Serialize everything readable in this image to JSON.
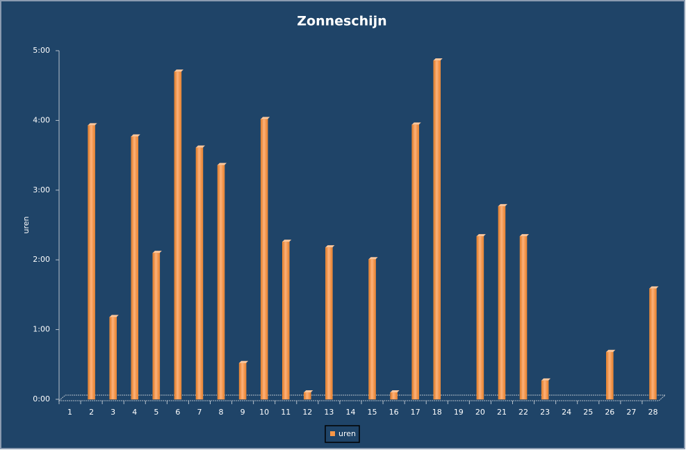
{
  "chart_data": {
    "type": "bar",
    "title": "Zonneschijn",
    "y_label": "uren",
    "categories": [
      "1",
      "2",
      "3",
      "4",
      "5",
      "6",
      "7",
      "8",
      "9",
      "10",
      "11",
      "12",
      "13",
      "14",
      "15",
      "16",
      "17",
      "18",
      "19",
      "20",
      "21",
      "22",
      "23",
      "24",
      "25",
      "26",
      "27",
      "28"
    ],
    "series": [
      {
        "name": "uren",
        "color": "#f79646",
        "values": [
          0,
          3.93,
          1.18,
          3.77,
          2.1,
          4.7,
          3.61,
          3.36,
          0.52,
          4.02,
          2.26,
          0.1,
          2.18,
          0,
          2.01,
          0.1,
          3.94,
          4.86,
          0,
          2.34,
          2.77,
          2.34,
          0.27,
          0,
          0,
          0.68,
          0,
          1.59
        ]
      }
    ],
    "ylim": [
      0,
      5
    ],
    "yticks": [
      {
        "value": 0,
        "label": "0:00"
      },
      {
        "value": 1,
        "label": "1:00"
      },
      {
        "value": 2,
        "label": "2:00"
      },
      {
        "value": 3,
        "label": "3:00"
      },
      {
        "value": 4,
        "label": "4:00"
      },
      {
        "value": 5,
        "label": "5:00"
      }
    ],
    "grid": false,
    "legend": "bottom"
  }
}
